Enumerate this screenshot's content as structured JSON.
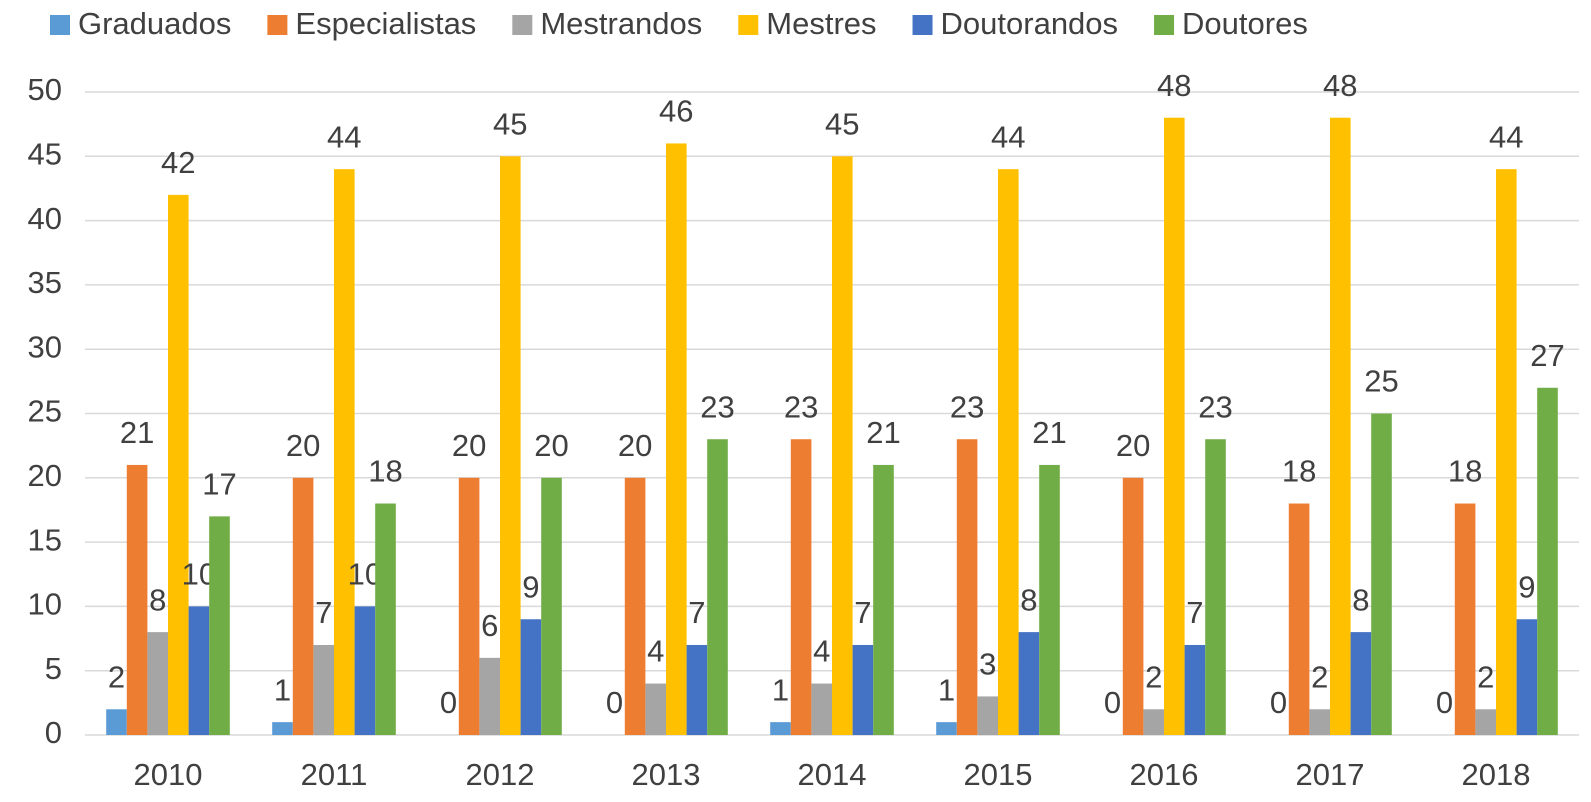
{
  "chart_data": {
    "type": "bar",
    "categories": [
      "2010",
      "2011",
      "2012",
      "2013",
      "2014",
      "2015",
      "2016",
      "2017",
      "2018"
    ],
    "series": [
      {
        "name": "Graduados",
        "color": "#5B9BD5",
        "values": [
          2,
          1,
          0,
          0,
          1,
          1,
          0,
          0,
          0
        ]
      },
      {
        "name": "Especialistas",
        "color": "#ED7D31",
        "values": [
          21,
          20,
          20,
          20,
          23,
          23,
          20,
          18,
          18
        ]
      },
      {
        "name": "Mestrandos",
        "color": "#A5A5A5",
        "values": [
          8,
          7,
          6,
          4,
          4,
          3,
          2,
          2,
          2
        ]
      },
      {
        "name": "Mestres",
        "color": "#FFC000",
        "values": [
          42,
          44,
          45,
          46,
          45,
          44,
          48,
          48,
          44
        ]
      },
      {
        "name": "Doutorandos",
        "color": "#4472C4",
        "values": [
          10,
          10,
          9,
          7,
          7,
          8,
          7,
          8,
          9
        ]
      },
      {
        "name": "Doutores",
        "color": "#70AD47",
        "values": [
          17,
          18,
          20,
          23,
          21,
          21,
          23,
          25,
          27
        ]
      }
    ],
    "ylim": [
      0,
      50
    ],
    "yticks": [
      0,
      5,
      10,
      15,
      20,
      25,
      30,
      35,
      40,
      45,
      50
    ],
    "grid": true,
    "legend": "top"
  }
}
